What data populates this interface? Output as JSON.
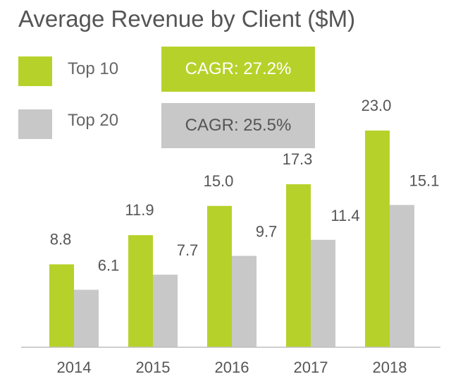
{
  "colors": {
    "top10": "#b6d22a",
    "top20": "#c8c8c8",
    "axis": "#bfbfbf",
    "text": "#555555",
    "cagr_top10_text": "#ffffff",
    "cagr_top20_text": "#555555"
  },
  "legend": {
    "top10_label": "Top 10",
    "top20_label": "Top 20",
    "top10_cagr": "CAGR: 27.2%",
    "top20_cagr": "CAGR: 25.5%"
  },
  "chart_data": {
    "type": "bar",
    "title": "Average Revenue by Client ($M)",
    "categories": [
      "2014",
      "2015",
      "2016",
      "2017",
      "2018"
    ],
    "series": [
      {
        "name": "Top 10",
        "values": [
          8.8,
          11.9,
          15.0,
          17.3,
          23.0
        ],
        "labels": [
          "8.8",
          "11.9",
          "15.0",
          "17.3",
          "23.0"
        ]
      },
      {
        "name": "Top 20",
        "values": [
          6.1,
          7.7,
          9.7,
          11.4,
          15.1
        ],
        "labels": [
          "6.1",
          "7.7",
          "9.7",
          "11.4",
          "15.1"
        ]
      }
    ],
    "ylim": [
      0,
      25
    ],
    "grid": false,
    "legend": "top-left"
  }
}
